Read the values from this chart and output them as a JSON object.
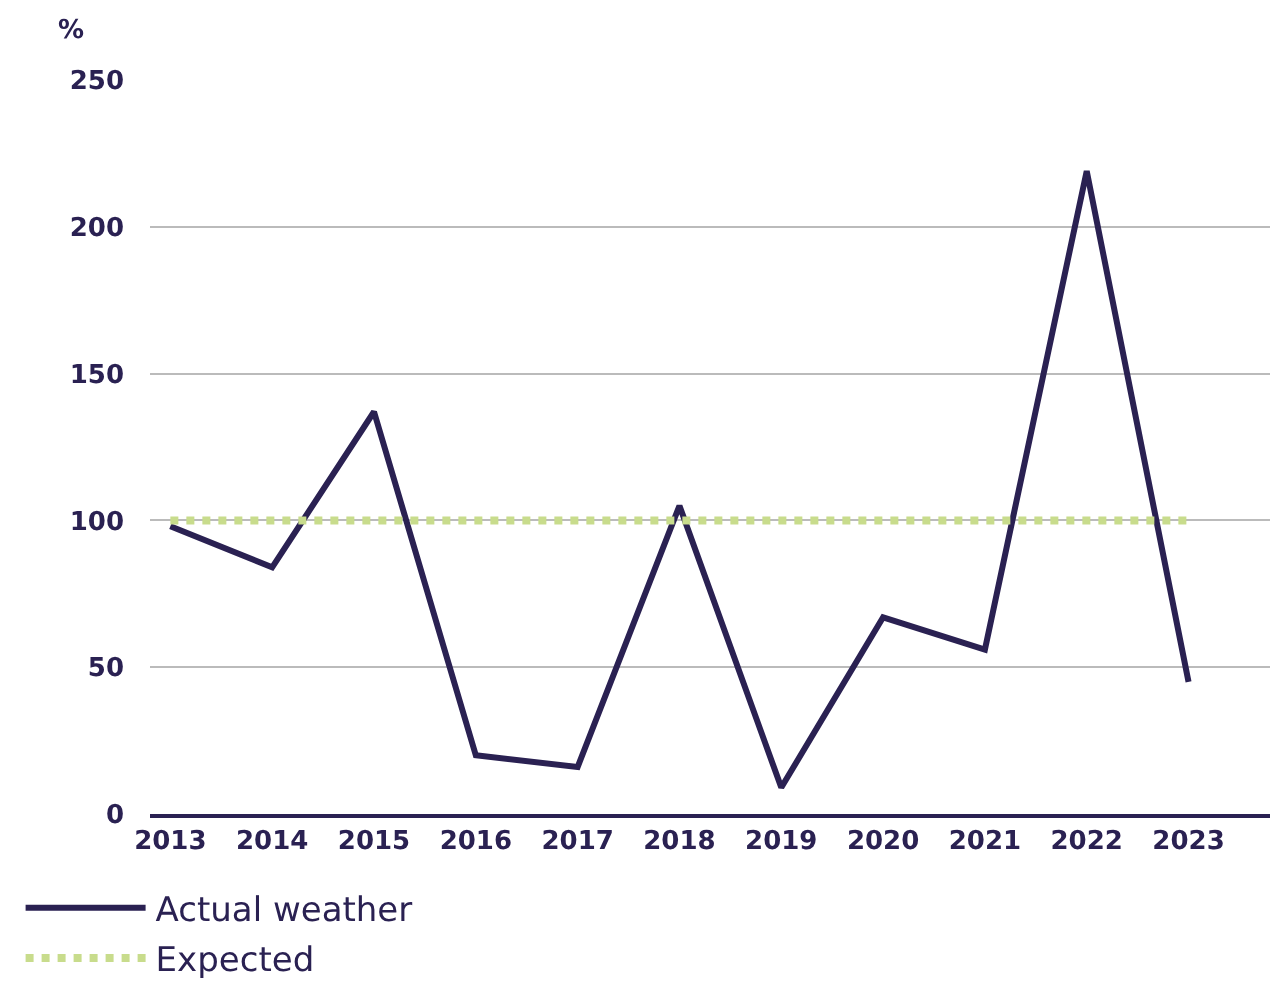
{
  "chart_data": {
    "type": "line",
    "ylabel": "%",
    "categories": [
      "2013",
      "2014",
      "2015",
      "2016",
      "2017",
      "2018",
      "2019",
      "2020",
      "2021",
      "2022",
      "2023"
    ],
    "series": [
      {
        "name": "Actual weather",
        "color": "#2a2152",
        "line_style": "solid",
        "values": [
          98,
          84,
          137,
          20,
          16,
          105,
          9,
          67,
          56,
          219,
          45
        ]
      },
      {
        "name": "Expected",
        "color": "#c8dc8c",
        "line_style": "dotted",
        "values": [
          100,
          100,
          100,
          100,
          100,
          100,
          100,
          100,
          100,
          100,
          100
        ]
      }
    ],
    "ylim": [
      0,
      250
    ],
    "yticks": [
      0,
      50,
      100,
      150,
      200,
      250
    ],
    "grid": "y",
    "legend": "bottom left",
    "marker": "none"
  }
}
